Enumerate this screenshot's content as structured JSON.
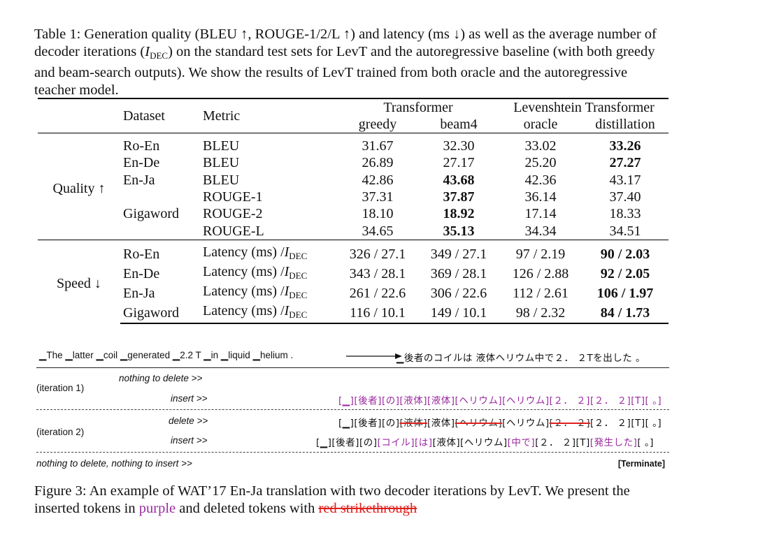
{
  "table_caption": {
    "t1": "Table 1:  Generation quality (BLEU ↑, ROUGE-1/2/L ↑) and latency (ms ↓) as well as the average number of decoder iterations (",
    "i": "I",
    "dec": "DEC",
    "t2": ") on the standard test sets for LevT and the autoregressive baseline (with both greedy and beam-search outputs). We show the results of LevT trained from both oracle and the autoregressive teacher model."
  },
  "table": {
    "h_dataset": "Dataset",
    "h_metric": "Metric",
    "h_transformer": "Transformer",
    "h_levt": "Levenshtein Transformer",
    "h_greedy": "greedy",
    "h_beam4": "beam4",
    "h_oracle": "oracle",
    "h_distill": "distillation",
    "quality_label": "Quality ↑",
    "speed_label": "Speed ↓",
    "latency_prefix": "Latency (ms) /",
    "I": "I",
    "DEC": "DEC",
    "quality_rows": [
      {
        "dataset": "Ro-En",
        "metric": "BLEU",
        "greedy": "31.67",
        "beam4": "32.30",
        "oracle": "33.02",
        "distill": "33.26"
      },
      {
        "dataset": "En-De",
        "metric": "BLEU",
        "greedy": "26.89",
        "beam4": "27.17",
        "oracle": "25.20",
        "distill": "27.27"
      },
      {
        "dataset": "En-Ja",
        "metric": "BLEU",
        "greedy": "42.86",
        "beam4": "43.68",
        "oracle": "42.36",
        "distill": "43.17"
      },
      {
        "dataset": "",
        "metric": "ROUGE-1",
        "greedy": "37.31",
        "beam4": "37.87",
        "oracle": "36.14",
        "distill": "37.40"
      },
      {
        "dataset": "Gigaword",
        "metric": "ROUGE-2",
        "greedy": "18.10",
        "beam4": "18.92",
        "oracle": "17.14",
        "distill": "18.33"
      },
      {
        "dataset": "",
        "metric": "ROUGE-L",
        "greedy": "34.65",
        "beam4": "35.13",
        "oracle": "34.34",
        "distill": "34.51"
      }
    ],
    "speed_rows": [
      {
        "dataset": "Ro-En",
        "greedy": "326 / 27.1",
        "beam4": "349 / 27.1",
        "oracle": "97 / 2.19",
        "distill": "90 / 2.03"
      },
      {
        "dataset": "En-De",
        "greedy": "343 / 28.1",
        "beam4": "369 / 28.1",
        "oracle": "126 / 2.88",
        "distill": "92 / 2.05"
      },
      {
        "dataset": "En-Ja",
        "greedy": "261 / 22.6",
        "beam4": "306 / 22.6",
        "oracle": "112 / 2.61",
        "distill": "106 / 1.97"
      },
      {
        "dataset": "Gigaword",
        "greedy": "116 / 10.1",
        "beam4": "149 / 10.1",
        "oracle": "98 / 2.32",
        "distill": "84 / 1.73"
      }
    ]
  },
  "figure": {
    "source": "▁The ▁latter ▁coil ▁generated ▁2.2 T ▁in ▁liquid ▁helium .",
    "target": "▁後者のコイルは 液体ヘリウム中で２． ２Tを出した 。",
    "iter1_label": "(iteration 1)",
    "iter2_label": "(iteration 2)",
    "nothing_to_delete": "nothing to delete >>",
    "insert": "insert >>",
    "delete": "delete >>",
    "final": "nothing to delete, nothing to insert >>",
    "terminate": "[Terminate]",
    "iter1_insert": "[▁][後者][の][液体][液体][ヘリウム][ヘリウム][２． ２][２． ２][T][ 。]",
    "iter2_delete_tokens": [
      {
        "t": "[▁][後者][の]",
        "del": false
      },
      {
        "t": "[液体]",
        "del": true
      },
      {
        "t": "[液体]",
        "del": false
      },
      {
        "t": "[ヘリウム]",
        "del": true
      },
      {
        "t": "[ヘリウム]",
        "del": false
      },
      {
        "t": "[２． ２]",
        "del": true
      },
      {
        "t": "[２． ２][T][ 。]",
        "del": false
      }
    ],
    "iter2_insert_tokens": [
      {
        "t": "[▁][後者][の]",
        "ins": false
      },
      {
        "t": "[コイル][は]",
        "ins": true
      },
      {
        "t": "[液体][ヘリウム]",
        "ins": false
      },
      {
        "t": "[中で]",
        "ins": true
      },
      {
        "t": "[２． ２][T]",
        "ins": false
      },
      {
        "t": "[発生した]",
        "ins": true
      },
      {
        "t": "[ 。]",
        "ins": false
      }
    ]
  },
  "figure_caption": {
    "c1": "Figure 3:  An example of WAT’17 En-Ja translation with two decoder iterations by LevT. We present the inserted tokens in ",
    "purple": "purple",
    "c2": " and deleted tokens with ",
    "red": "red strikethrough"
  },
  "colors": {
    "insert": "#9b2aa0",
    "delete": "#e0201c"
  }
}
